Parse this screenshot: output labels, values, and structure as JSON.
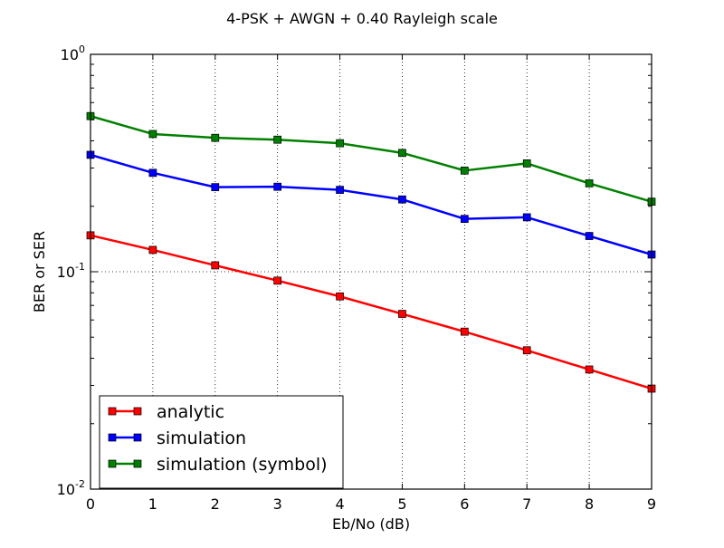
{
  "chart_data": {
    "type": "line",
    "title": "4-PSK + AWGN + 0.40 Rayleigh scale",
    "xlabel": "Eb/No (dB)",
    "ylabel": "BER or SER",
    "xlim": [
      0,
      9
    ],
    "ylim": [
      0.01,
      1
    ],
    "yscale": "log",
    "grid": true,
    "legend_position": "lower-left",
    "x": [
      0,
      1,
      2,
      3,
      4,
      5,
      6,
      7,
      8,
      9
    ],
    "x_tick_labels": [
      "0",
      "1",
      "2",
      "3",
      "4",
      "5",
      "6",
      "7",
      "8",
      "9"
    ],
    "y_tick_labels": [
      {
        "base": "10",
        "exp": "0",
        "value": 1
      },
      {
        "base": "10",
        "exp": "-1",
        "value": 0.1
      },
      {
        "base": "10",
        "exp": "-2",
        "value": 0.01
      }
    ],
    "series": [
      {
        "name": "analytic",
        "color": "#ff0000",
        "marker": "square",
        "values": [
          0.147,
          0.126,
          0.107,
          0.091,
          0.077,
          0.064,
          0.053,
          0.0435,
          0.0355,
          0.029
        ]
      },
      {
        "name": "simulation",
        "color": "#0000ff",
        "marker": "square",
        "values": [
          0.345,
          0.285,
          0.245,
          0.246,
          0.238,
          0.215,
          0.175,
          0.178,
          0.146,
          0.12
        ]
      },
      {
        "name": "simulation (symbol)",
        "color": "#008000",
        "marker": "square",
        "values": [
          0.52,
          0.43,
          0.413,
          0.405,
          0.39,
          0.352,
          0.292,
          0.315,
          0.255,
          0.21
        ]
      }
    ]
  }
}
